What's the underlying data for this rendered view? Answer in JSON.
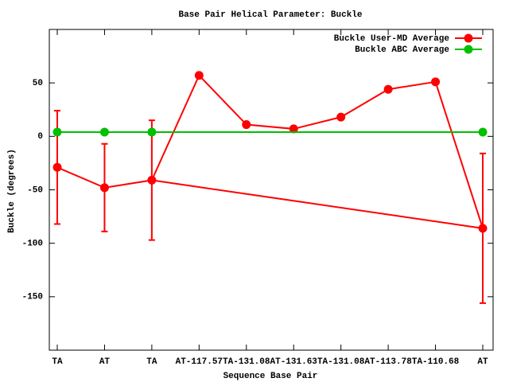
{
  "chart_data": {
    "type": "line",
    "title": "Base Pair Helical Parameter: Buckle",
    "x_label": "Sequence Base Pair",
    "y_label": "Buckle (degrees)",
    "categories": [
      "TA",
      "AT",
      "TA",
      "AT-117.57",
      "TA-131.08",
      "AT-131.63",
      "TA-131.08",
      "AT-113.78",
      "TA-110.68",
      "AT"
    ],
    "series": [
      {
        "name": "Buckle User-MD Average",
        "color": "#ff0000",
        "values": [
          -29,
          -48,
          -41,
          57,
          11,
          7,
          18,
          44,
          51,
          -86
        ],
        "errors": [
          53,
          41,
          56,
          null,
          null,
          null,
          null,
          null,
          null,
          70
        ]
      },
      {
        "name": "Buckle ABC Average",
        "color": "#00c000",
        "values": [
          4,
          4,
          4,
          null,
          null,
          null,
          null,
          null,
          null,
          4
        ]
      }
    ],
    "ylim": [
      -200,
      100
    ],
    "yticks": [
      -150,
      -100,
      -50,
      0,
      50
    ],
    "legend": "top-right"
  }
}
